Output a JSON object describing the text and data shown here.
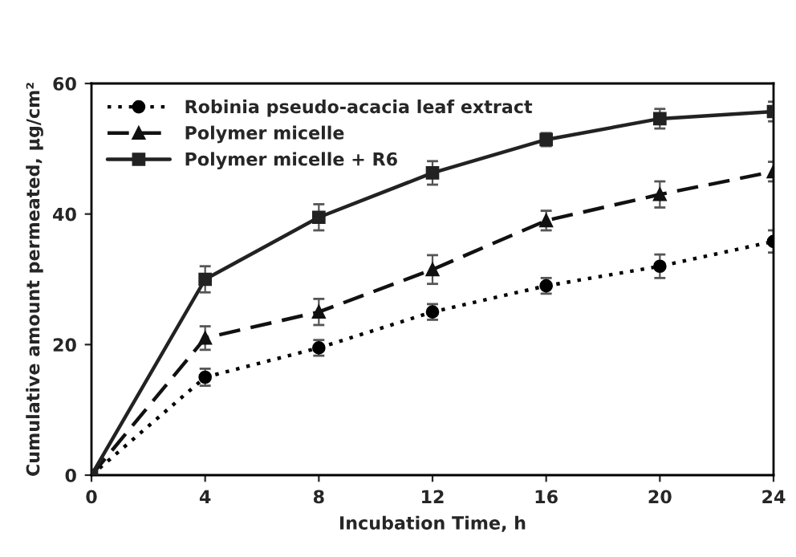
{
  "chart_data": {
    "type": "line",
    "xlabel": "Incubation Time, h",
    "ylabel": "Cumulative amount permeated, µg/cm²",
    "x": [
      0,
      4,
      8,
      12,
      16,
      20,
      24
    ],
    "xlim": [
      0,
      24
    ],
    "xticks": [
      0,
      4,
      8,
      12,
      16,
      20,
      24
    ],
    "ylim": [
      0,
      60
    ],
    "yticks": [
      0,
      20,
      40,
      60
    ],
    "grid": false,
    "legend": "top left",
    "series": [
      {
        "name": "Robinia pseudo-acacia leaf extract",
        "color": "#000000",
        "marker": "circle",
        "line_style": "dotted",
        "values": [
          0,
          15,
          19.5,
          25,
          29,
          32,
          35.8
        ],
        "errors": [
          null,
          1.3,
          1.2,
          1.2,
          1.2,
          1.8,
          1.7
        ]
      },
      {
        "name": "Polymer micelle",
        "color": "#111111",
        "marker": "triangle",
        "line_style": "dashed",
        "values": [
          0,
          21,
          25,
          31.5,
          39,
          43,
          46.5
        ],
        "errors": [
          null,
          1.8,
          2,
          2.2,
          1.5,
          2,
          1.5
        ]
      },
      {
        "name": "Polymer micelle + R6",
        "color": "#222222",
        "marker": "square",
        "line_style": "solid",
        "values": [
          0,
          30,
          39.5,
          46.3,
          51.4,
          54.6,
          55.7
        ],
        "errors": [
          null,
          2,
          2,
          1.8,
          1,
          1.5,
          1.5
        ]
      }
    ]
  }
}
